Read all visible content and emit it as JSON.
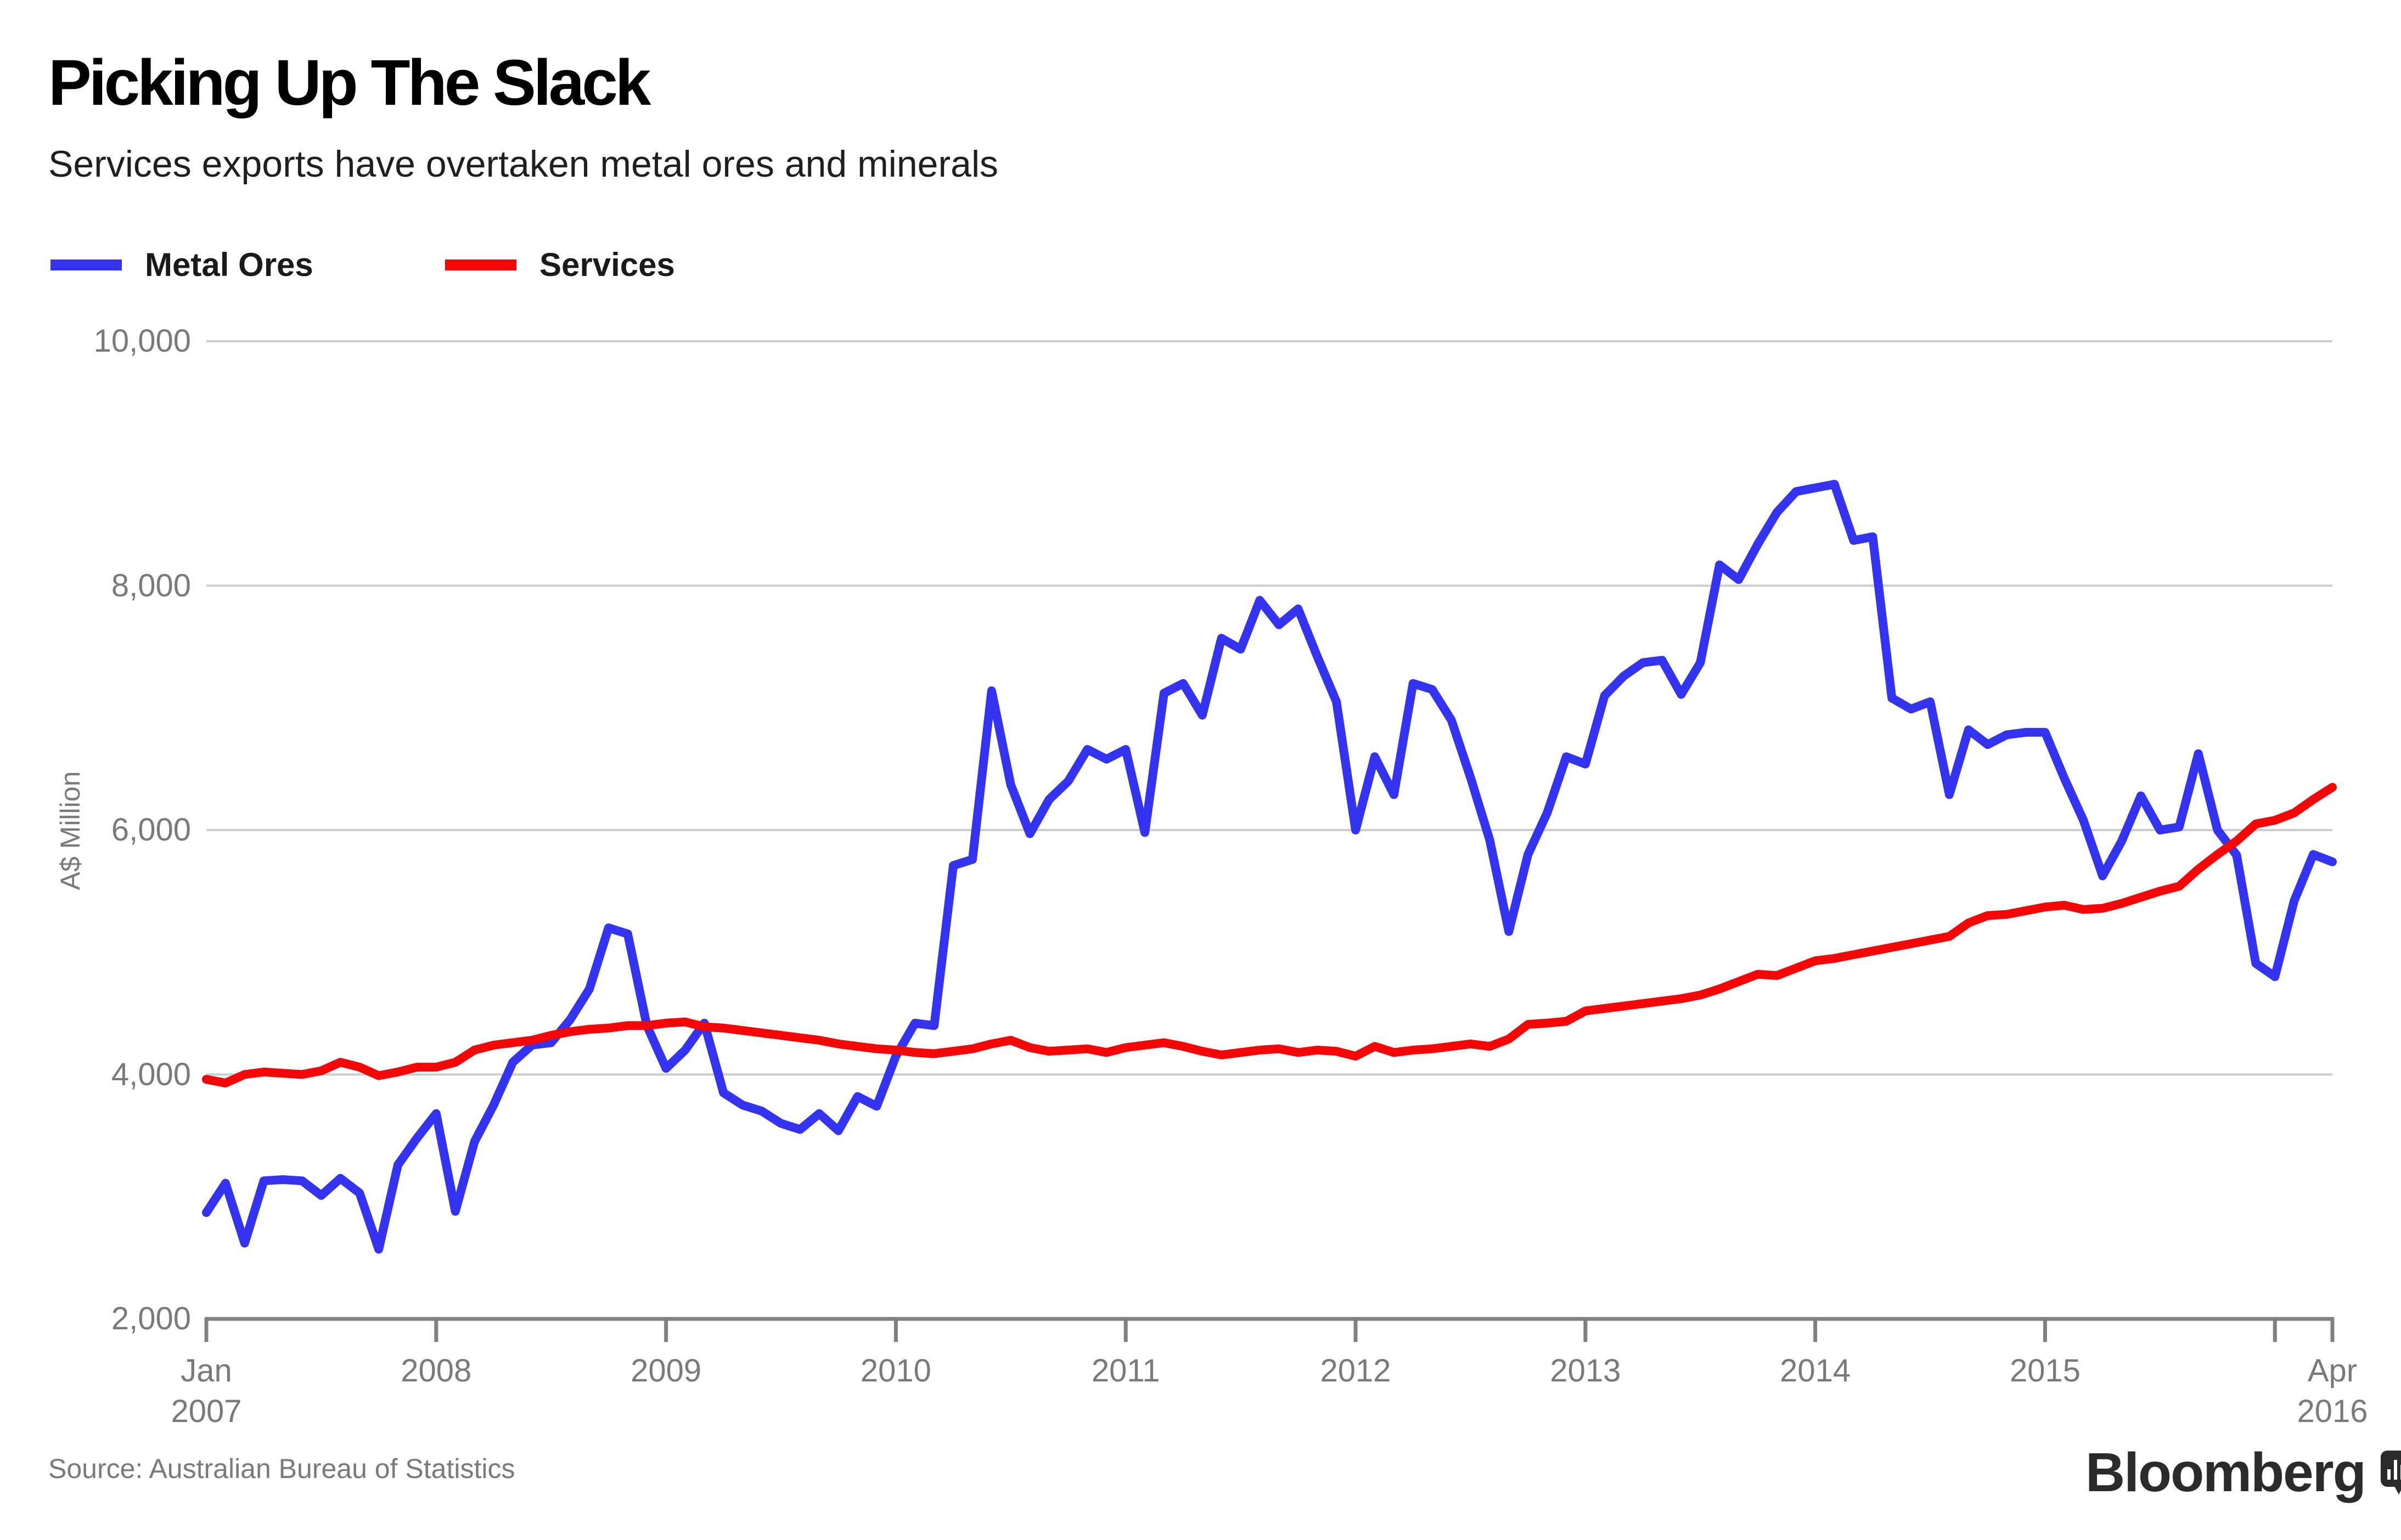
{
  "header": {
    "title": "Picking Up The Slack",
    "subtitle": "Services exports have overtaken metal ores and minerals"
  },
  "source_line": "Source: Australian Bureau of Statistics",
  "branding": {
    "wordmark": "Bloomberg",
    "icon": "bloomberg-chart-bubble-icon"
  },
  "colors": {
    "metal_ores": "#3333f0",
    "services": "#f50505",
    "grid": "#cccccc",
    "axis": "#808080",
    "tick_text": "#7a7a7a",
    "title": "#000000",
    "subtitle": "#1f1f1f",
    "legend_text": "#1a1a1a",
    "source_text": "#7a7a7a",
    "logo": "#2b2b2b"
  },
  "chart_data": {
    "type": "line",
    "title": "Picking Up The Slack",
    "subtitle": "Services exports have overtaken metal ores and minerals",
    "xlabel": "",
    "ylabel": "A$ Million",
    "ylim": [
      2000,
      10000
    ],
    "grid": "horizontal",
    "legend_position": "top-left",
    "x_start": "2007-01",
    "x_end": "2016-04",
    "month_count": 112,
    "y_ticks": [
      {
        "value": 10000,
        "label": "10,000"
      },
      {
        "value": 8000,
        "label": "8,000"
      },
      {
        "value": 6000,
        "label": "6,000"
      },
      {
        "value": 4000,
        "label": "4,000"
      },
      {
        "value": 2000,
        "label": "2,000"
      }
    ],
    "x_ticks": [
      {
        "month_index": 0,
        "label": "Jan\n2007"
      },
      {
        "month_index": 12,
        "label": "2008"
      },
      {
        "month_index": 24,
        "label": "2009"
      },
      {
        "month_index": 36,
        "label": "2010"
      },
      {
        "month_index": 48,
        "label": "2011"
      },
      {
        "month_index": 60,
        "label": "2012"
      },
      {
        "month_index": 72,
        "label": "2013"
      },
      {
        "month_index": 84,
        "label": "2014"
      },
      {
        "month_index": 96,
        "label": "2015"
      },
      {
        "month_index": 108,
        "label": ""
      },
      {
        "month_index": 111,
        "label": "Apr\n2016"
      }
    ],
    "series": [
      {
        "name": "Metal Ores",
        "color": "#3333f0",
        "values": [
          2870,
          3110,
          2620,
          3130,
          3140,
          3130,
          3010,
          3150,
          3030,
          2570,
          3260,
          3480,
          3680,
          2880,
          3450,
          3750,
          4100,
          4240,
          4260,
          4450,
          4700,
          5200,
          5150,
          4400,
          4050,
          4200,
          4420,
          3850,
          3750,
          3700,
          3600,
          3550,
          3680,
          3540,
          3820,
          3740,
          4150,
          4420,
          4400,
          5710,
          5760,
          7140,
          6370,
          5970,
          6250,
          6400,
          6660,
          6580,
          6660,
          5980,
          7120,
          7200,
          6940,
          7570,
          7480,
          7880,
          7680,
          7810,
          7420,
          7050,
          6000,
          6600,
          6290,
          7200,
          7150,
          6900,
          6430,
          5920,
          5170,
          5800,
          6140,
          6600,
          6540,
          7100,
          7260,
          7370,
          7390,
          7110,
          7370,
          8170,
          8050,
          8340,
          8600,
          8770,
          8800,
          8830,
          8370,
          8400,
          7080,
          6990,
          7050,
          6290,
          6820,
          6700,
          6780,
          6800,
          6800,
          6425,
          6080,
          5625,
          5910,
          6280,
          6000,
          6025,
          6625,
          6000,
          5795,
          4910,
          4800,
          5420,
          5800,
          5740
        ]
      },
      {
        "name": "Services",
        "color": "#f50505",
        "values": [
          3960,
          3930,
          4000,
          4020,
          4010,
          4000,
          4030,
          4100,
          4060,
          3990,
          4020,
          4060,
          4060,
          4100,
          4200,
          4240,
          4260,
          4280,
          4320,
          4350,
          4370,
          4380,
          4400,
          4400,
          4420,
          4430,
          4390,
          4380,
          4360,
          4340,
          4320,
          4300,
          4280,
          4250,
          4230,
          4210,
          4200,
          4180,
          4170,
          4190,
          4210,
          4250,
          4280,
          4220,
          4190,
          4200,
          4210,
          4180,
          4220,
          4240,
          4260,
          4230,
          4190,
          4160,
          4180,
          4200,
          4210,
          4180,
          4200,
          4190,
          4150,
          4230,
          4180,
          4200,
          4210,
          4230,
          4250,
          4230,
          4290,
          4410,
          4420,
          4435,
          4520,
          4540,
          4560,
          4580,
          4600,
          4620,
          4650,
          4700,
          4760,
          4820,
          4810,
          4870,
          4930,
          4950,
          4980,
          5010,
          5040,
          5070,
          5100,
          5130,
          5240,
          5300,
          5310,
          5340,
          5370,
          5385,
          5350,
          5360,
          5400,
          5450,
          5500,
          5540,
          5680,
          5800,
          5910,
          6050,
          6080,
          6140,
          6250,
          6350
        ]
      }
    ]
  }
}
